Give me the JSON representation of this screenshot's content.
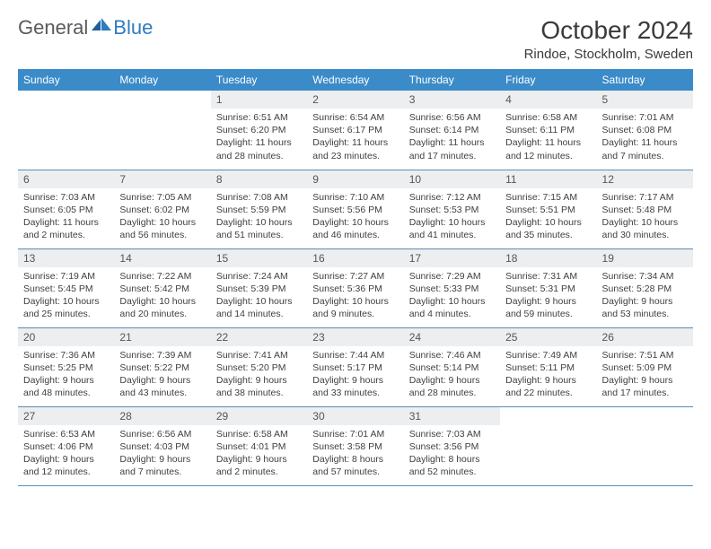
{
  "brand": {
    "part1": "General",
    "part2": "Blue"
  },
  "title": "October 2024",
  "location": "Rindoe, Stockholm, Sweden",
  "colors": {
    "header_bg": "#3b8bc9",
    "header_text": "#ffffff",
    "daynum_bg": "#eceef0",
    "row_border": "#5a8cb5",
    "brand_gray": "#5a5a5a",
    "brand_blue": "#2f7bbf",
    "body_text": "#3a3a3a"
  },
  "weekdays": [
    "Sunday",
    "Monday",
    "Tuesday",
    "Wednesday",
    "Thursday",
    "Friday",
    "Saturday"
  ],
  "weeks": [
    [
      null,
      null,
      {
        "n": "1",
        "sr": "6:51 AM",
        "ss": "6:20 PM",
        "dl": "11 hours and 28 minutes."
      },
      {
        "n": "2",
        "sr": "6:54 AM",
        "ss": "6:17 PM",
        "dl": "11 hours and 23 minutes."
      },
      {
        "n": "3",
        "sr": "6:56 AM",
        "ss": "6:14 PM",
        "dl": "11 hours and 17 minutes."
      },
      {
        "n": "4",
        "sr": "6:58 AM",
        "ss": "6:11 PM",
        "dl": "11 hours and 12 minutes."
      },
      {
        "n": "5",
        "sr": "7:01 AM",
        "ss": "6:08 PM",
        "dl": "11 hours and 7 minutes."
      }
    ],
    [
      {
        "n": "6",
        "sr": "7:03 AM",
        "ss": "6:05 PM",
        "dl": "11 hours and 2 minutes."
      },
      {
        "n": "7",
        "sr": "7:05 AM",
        "ss": "6:02 PM",
        "dl": "10 hours and 56 minutes."
      },
      {
        "n": "8",
        "sr": "7:08 AM",
        "ss": "5:59 PM",
        "dl": "10 hours and 51 minutes."
      },
      {
        "n": "9",
        "sr": "7:10 AM",
        "ss": "5:56 PM",
        "dl": "10 hours and 46 minutes."
      },
      {
        "n": "10",
        "sr": "7:12 AM",
        "ss": "5:53 PM",
        "dl": "10 hours and 41 minutes."
      },
      {
        "n": "11",
        "sr": "7:15 AM",
        "ss": "5:51 PM",
        "dl": "10 hours and 35 minutes."
      },
      {
        "n": "12",
        "sr": "7:17 AM",
        "ss": "5:48 PM",
        "dl": "10 hours and 30 minutes."
      }
    ],
    [
      {
        "n": "13",
        "sr": "7:19 AM",
        "ss": "5:45 PM",
        "dl": "10 hours and 25 minutes."
      },
      {
        "n": "14",
        "sr": "7:22 AM",
        "ss": "5:42 PM",
        "dl": "10 hours and 20 minutes."
      },
      {
        "n": "15",
        "sr": "7:24 AM",
        "ss": "5:39 PM",
        "dl": "10 hours and 14 minutes."
      },
      {
        "n": "16",
        "sr": "7:27 AM",
        "ss": "5:36 PM",
        "dl": "10 hours and 9 minutes."
      },
      {
        "n": "17",
        "sr": "7:29 AM",
        "ss": "5:33 PM",
        "dl": "10 hours and 4 minutes."
      },
      {
        "n": "18",
        "sr": "7:31 AM",
        "ss": "5:31 PM",
        "dl": "9 hours and 59 minutes."
      },
      {
        "n": "19",
        "sr": "7:34 AM",
        "ss": "5:28 PM",
        "dl": "9 hours and 53 minutes."
      }
    ],
    [
      {
        "n": "20",
        "sr": "7:36 AM",
        "ss": "5:25 PM",
        "dl": "9 hours and 48 minutes."
      },
      {
        "n": "21",
        "sr": "7:39 AM",
        "ss": "5:22 PM",
        "dl": "9 hours and 43 minutes."
      },
      {
        "n": "22",
        "sr": "7:41 AM",
        "ss": "5:20 PM",
        "dl": "9 hours and 38 minutes."
      },
      {
        "n": "23",
        "sr": "7:44 AM",
        "ss": "5:17 PM",
        "dl": "9 hours and 33 minutes."
      },
      {
        "n": "24",
        "sr": "7:46 AM",
        "ss": "5:14 PM",
        "dl": "9 hours and 28 minutes."
      },
      {
        "n": "25",
        "sr": "7:49 AM",
        "ss": "5:11 PM",
        "dl": "9 hours and 22 minutes."
      },
      {
        "n": "26",
        "sr": "7:51 AM",
        "ss": "5:09 PM",
        "dl": "9 hours and 17 minutes."
      }
    ],
    [
      {
        "n": "27",
        "sr": "6:53 AM",
        "ss": "4:06 PM",
        "dl": "9 hours and 12 minutes."
      },
      {
        "n": "28",
        "sr": "6:56 AM",
        "ss": "4:03 PM",
        "dl": "9 hours and 7 minutes."
      },
      {
        "n": "29",
        "sr": "6:58 AM",
        "ss": "4:01 PM",
        "dl": "9 hours and 2 minutes."
      },
      {
        "n": "30",
        "sr": "7:01 AM",
        "ss": "3:58 PM",
        "dl": "8 hours and 57 minutes."
      },
      {
        "n": "31",
        "sr": "7:03 AM",
        "ss": "3:56 PM",
        "dl": "8 hours and 52 minutes."
      },
      null,
      null
    ]
  ],
  "labels": {
    "sunrise": "Sunrise:",
    "sunset": "Sunset:",
    "daylight": "Daylight:"
  }
}
